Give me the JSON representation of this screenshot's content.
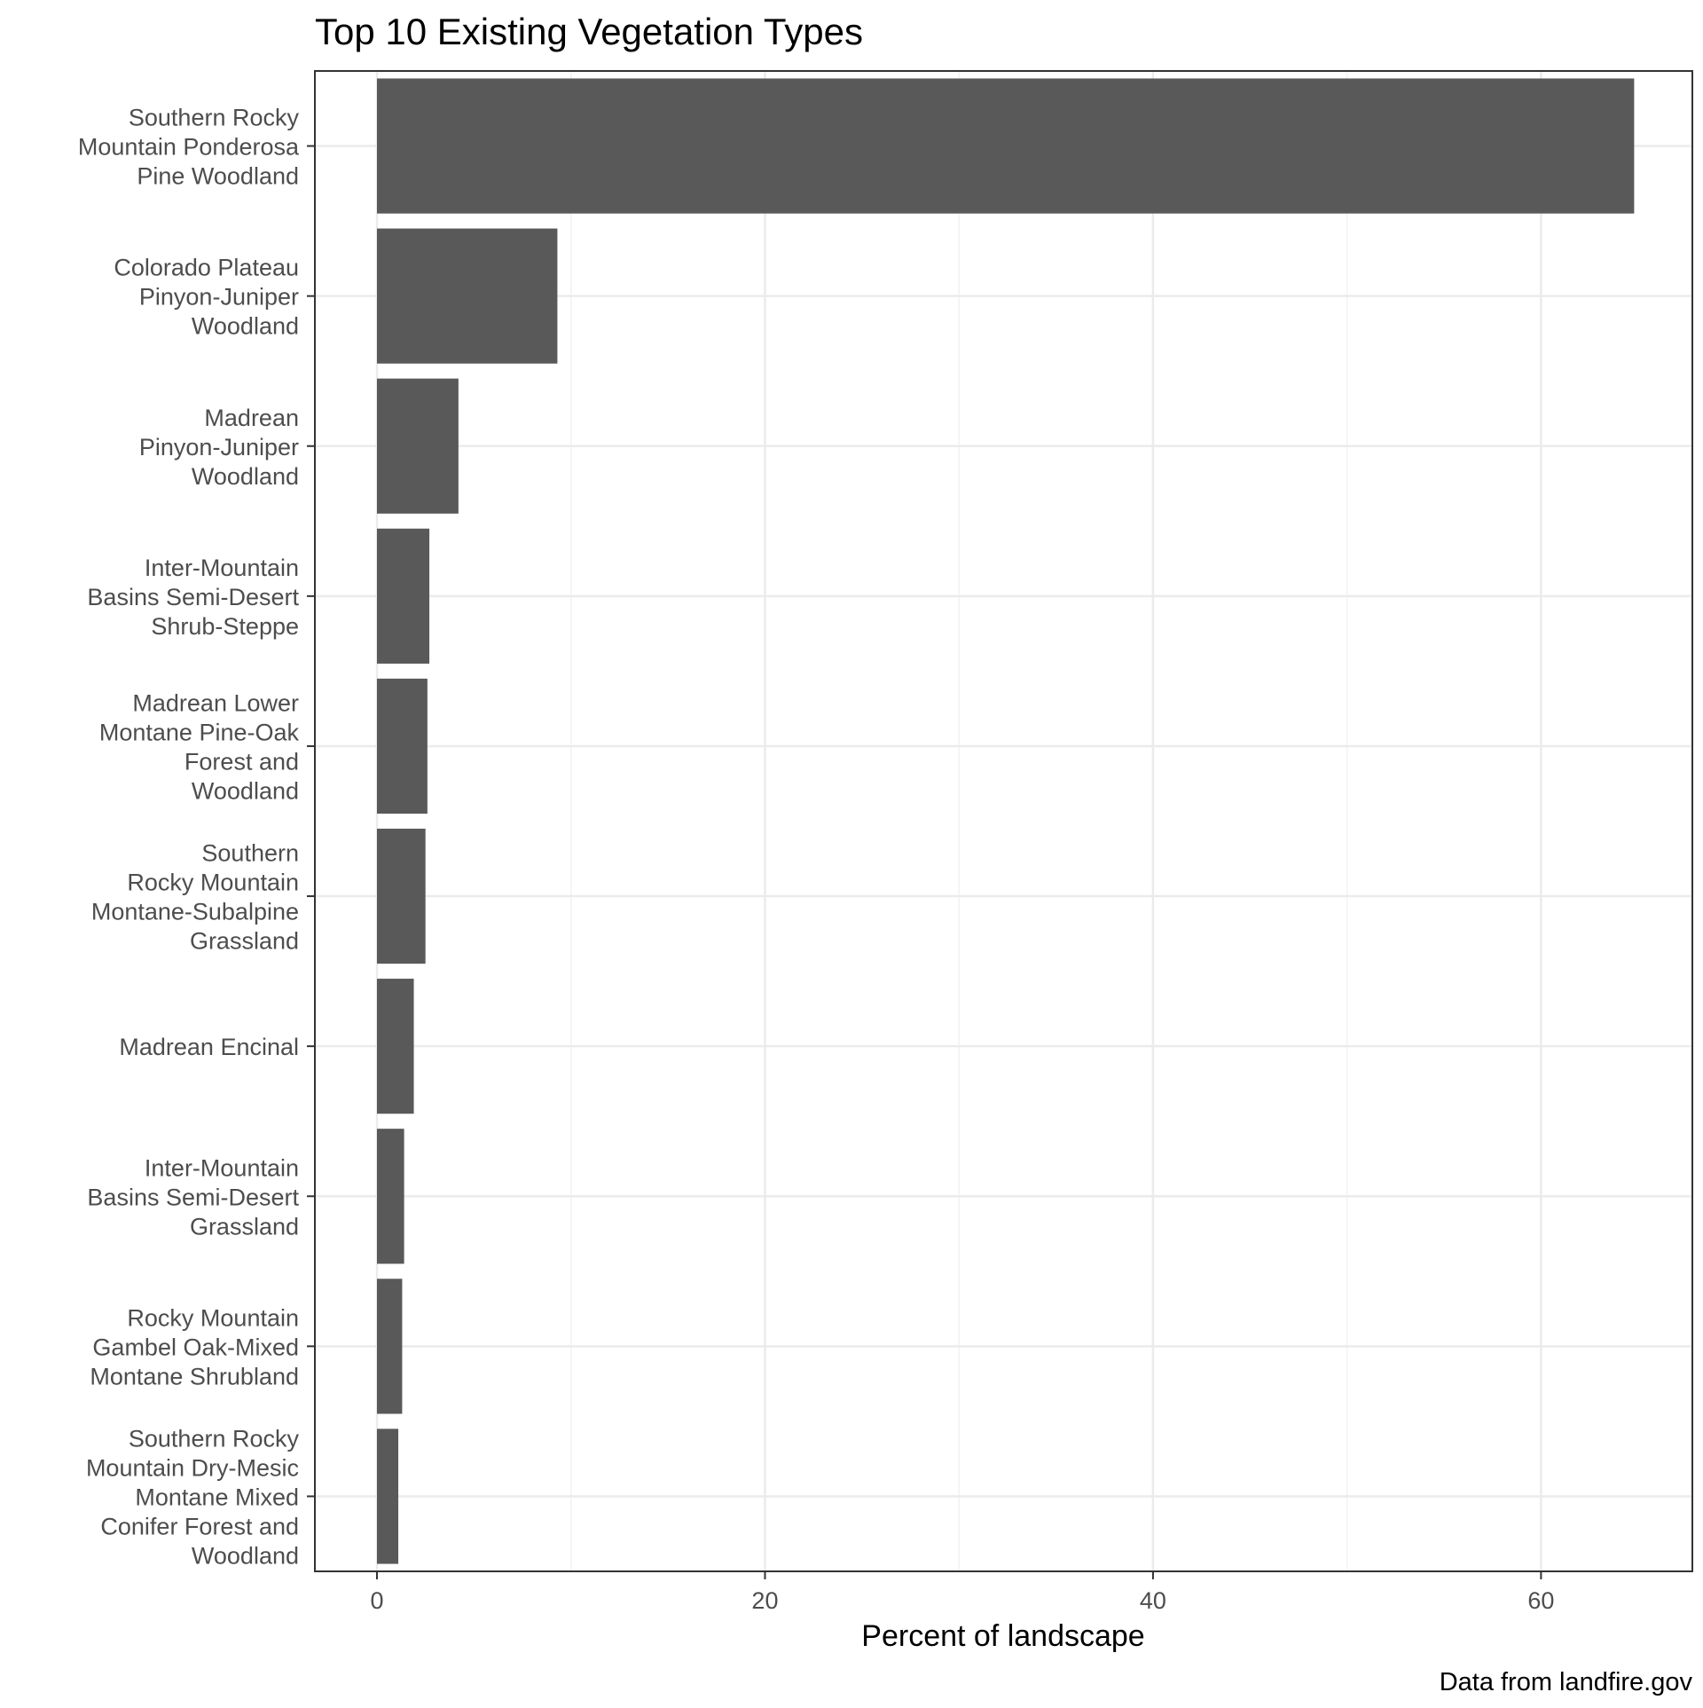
{
  "chart_data": {
    "type": "bar",
    "orientation": "horizontal",
    "title": "Top 10 Existing Vegetation Types",
    "xlabel": "Percent of landscape",
    "ylabel": "",
    "caption": "Data from landfire.gov",
    "xlim": [
      -3.2,
      67.8
    ],
    "xticks": [
      0,
      20,
      40,
      60
    ],
    "grid": true,
    "bar_color": "#595959",
    "categories": [
      [
        "Southern Rocky",
        "Mountain Ponderosa",
        "Pine Woodland"
      ],
      [
        "Colorado Plateau",
        "Pinyon-Juniper",
        "Woodland"
      ],
      [
        "Madrean",
        "Pinyon-Juniper",
        "Woodland"
      ],
      [
        "Inter-Mountain",
        "Basins Semi-Desert",
        "Shrub-Steppe"
      ],
      [
        "Madrean Lower",
        "Montane Pine-Oak",
        "Forest and",
        "Woodland"
      ],
      [
        "Southern",
        "Rocky Mountain",
        "Montane-Subalpine",
        "Grassland"
      ],
      [
        "Madrean Encinal"
      ],
      [
        "Inter-Mountain",
        "Basins Semi-Desert",
        "Grassland"
      ],
      [
        "Rocky Mountain",
        "Gambel Oak-Mixed",
        "Montane Shrubland"
      ],
      [
        "Southern Rocky",
        "Mountain Dry-Mesic",
        "Montane Mixed",
        "Conifer Forest and",
        "Woodland"
      ]
    ],
    "values": [
      64.8,
      9.3,
      4.2,
      2.7,
      2.6,
      2.5,
      1.9,
      1.4,
      1.3,
      1.1
    ]
  }
}
